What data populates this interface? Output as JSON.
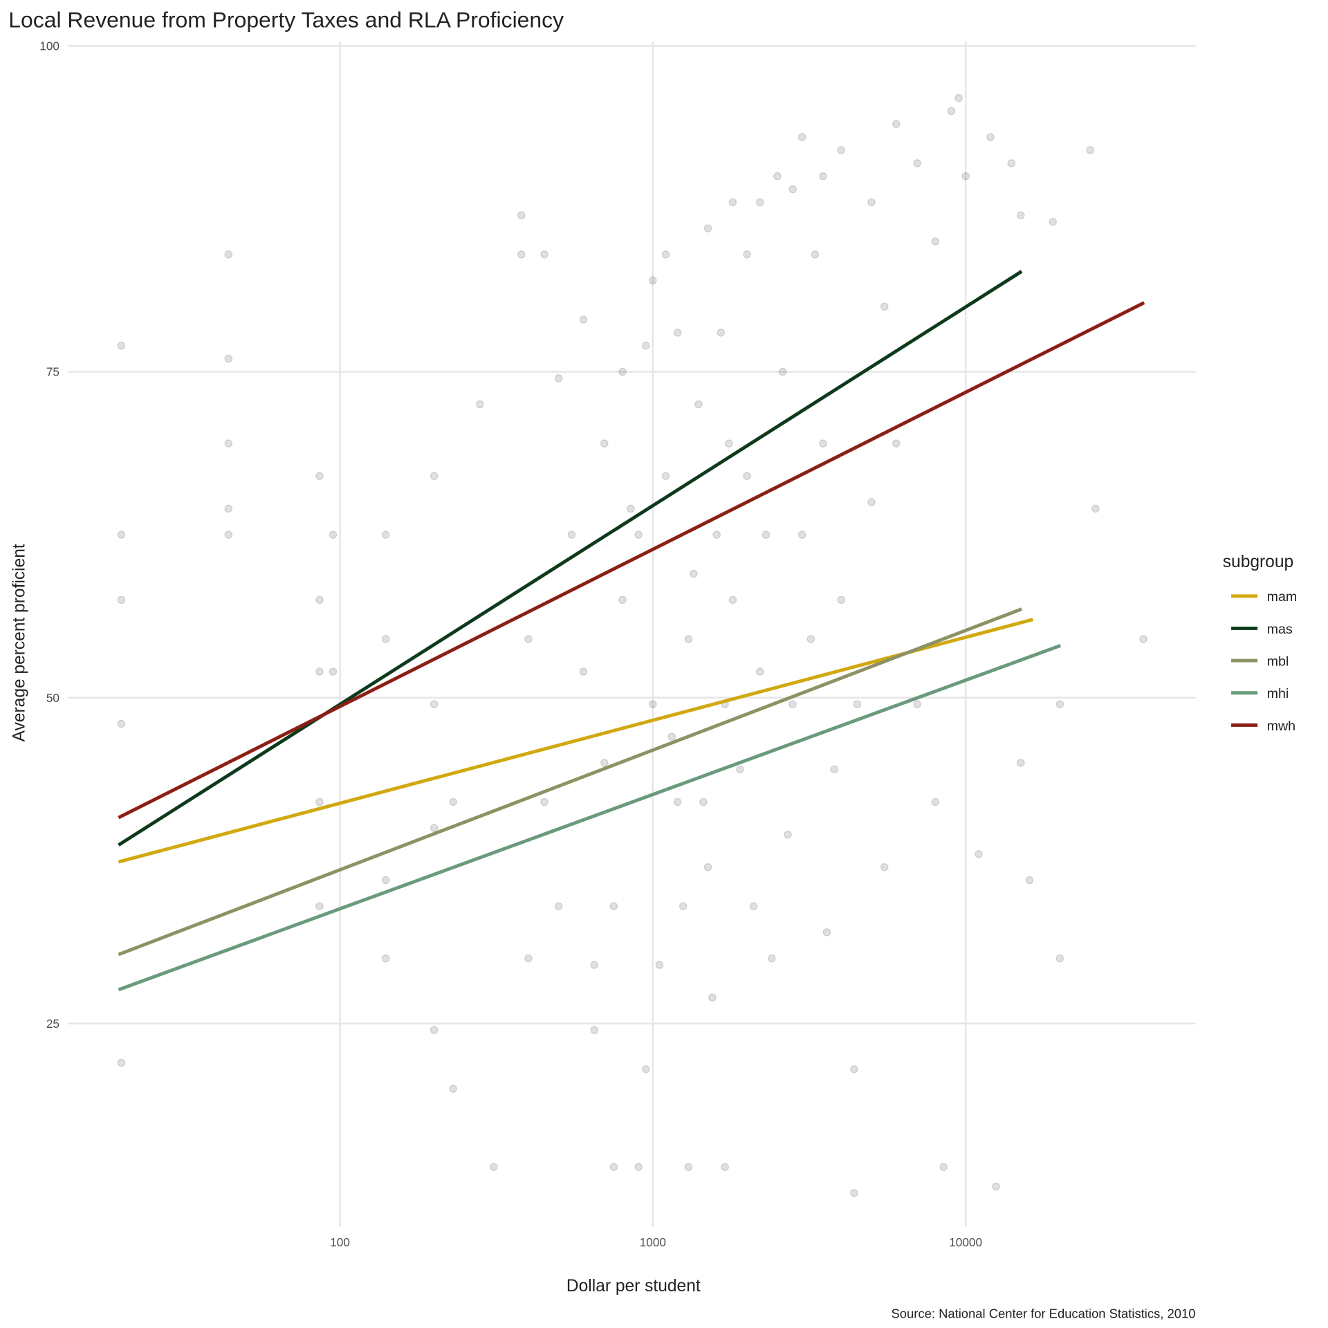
{
  "chart_data": {
    "type": "scatter",
    "title": "Local Revenue from Property Taxes and RLA Proficiency",
    "x_label": "Dollar per student",
    "y_label": "Average percent proficient",
    "caption": "Source: National Center for Education Statistics, 2010",
    "legend_title": "subgroup",
    "log_x": true,
    "grid": true,
    "xlim": [
      13.5,
      54300
    ],
    "ylim": [
      9.4,
      100.3
    ],
    "xticks": [
      100,
      1000,
      10000
    ],
    "yticks": [
      25,
      50,
      75,
      100
    ],
    "points": {
      "color": "#000000",
      "x": [
        20,
        20,
        20,
        20,
        20,
        44,
        44,
        44,
        44,
        44,
        86,
        86,
        86,
        86,
        86,
        95,
        95,
        140,
        140,
        140,
        140,
        200,
        200,
        200,
        200,
        230,
        230,
        280,
        310,
        380,
        380,
        400,
        450,
        500,
        550,
        600,
        650,
        700,
        750,
        800,
        900,
        950,
        1000,
        1100,
        1200,
        1300,
        1500,
        1700,
        1800,
        2000,
        2200,
        2500,
        2800,
        3000,
        3500,
        4000,
        4400,
        4400,
        5000,
        5500,
        6000,
        7000,
        8000,
        8500,
        9000,
        9500,
        10000,
        12000,
        12500,
        14000,
        15000,
        15000,
        16000,
        19000,
        20000,
        20000,
        25000,
        26000,
        37000,
        11000,
        600,
        700,
        800,
        900,
        1000,
        1100,
        1200,
        1300,
        1400,
        1500,
        1600,
        1700,
        1800,
        1900,
        2000,
        2200,
        2400,
        2600,
        2800,
        3000,
        3200,
        3500,
        3800,
        4000,
        4500,
        5000,
        5500,
        6000,
        7000,
        8000,
        500,
        450,
        400,
        650,
        750,
        850,
        950,
        1050,
        1150,
        1250,
        1350,
        1450,
        1550,
        1650,
        1750,
        2100,
        2300,
        2700,
        3300,
        3600
      ],
      "y": [
        77,
        62.5,
        57.5,
        48,
        22,
        84,
        76,
        69.5,
        64.5,
        62.5,
        67,
        57.5,
        52,
        42,
        34,
        62.5,
        52,
        62.5,
        54.5,
        36,
        30,
        67,
        49.5,
        40,
        24.5,
        42,
        20,
        72.5,
        14,
        87,
        84,
        30,
        84,
        74.5,
        62.5,
        79,
        24.5,
        69.5,
        14,
        75,
        14,
        21.5,
        82,
        84,
        78,
        14,
        86,
        14,
        88,
        84,
        88,
        90,
        89,
        93,
        90,
        92,
        21.5,
        12,
        88,
        80,
        94,
        91,
        85,
        14,
        95,
        96,
        90,
        93,
        12.5,
        91,
        87,
        45,
        36,
        86.5,
        49.5,
        30,
        92,
        64.5,
        54.5,
        38,
        52,
        45,
        57.5,
        62.5,
        49.5,
        67,
        42,
        54.5,
        72.5,
        37,
        62.5,
        49.5,
        57.5,
        44.5,
        67,
        52,
        30,
        75,
        49.5,
        62.5,
        54.5,
        69.5,
        44.5,
        57.5,
        49.5,
        65,
        37,
        69.5,
        49.5,
        42,
        34,
        42,
        54.5,
        29.5,
        34,
        64.5,
        77,
        29.5,
        47,
        34,
        59.5,
        42,
        27,
        78,
        69.5,
        34,
        62.5,
        39.5,
        84,
        32
      ]
    },
    "lines": [
      {
        "name": "mam",
        "color": "#d1a80f",
        "x": [
          19.6,
          16400
        ],
        "values": [
          37.4,
          56.0
        ]
      },
      {
        "name": "mas",
        "color": "#0e3a1c",
        "x": [
          19.6,
          15100
        ],
        "values": [
          38.7,
          82.7
        ]
      },
      {
        "name": "mbl",
        "color": "#8e9163",
        "x": [
          19.6,
          15100
        ],
        "values": [
          30.3,
          56.8
        ]
      },
      {
        "name": "mhi",
        "color": "#6a9a7c",
        "x": [
          19.6,
          20100
        ],
        "values": [
          27.6,
          54.0
        ]
      },
      {
        "name": "mwh",
        "color": "#8b1f14",
        "x": [
          19.6,
          37200
        ],
        "values": [
          40.8,
          80.3
        ]
      }
    ]
  }
}
